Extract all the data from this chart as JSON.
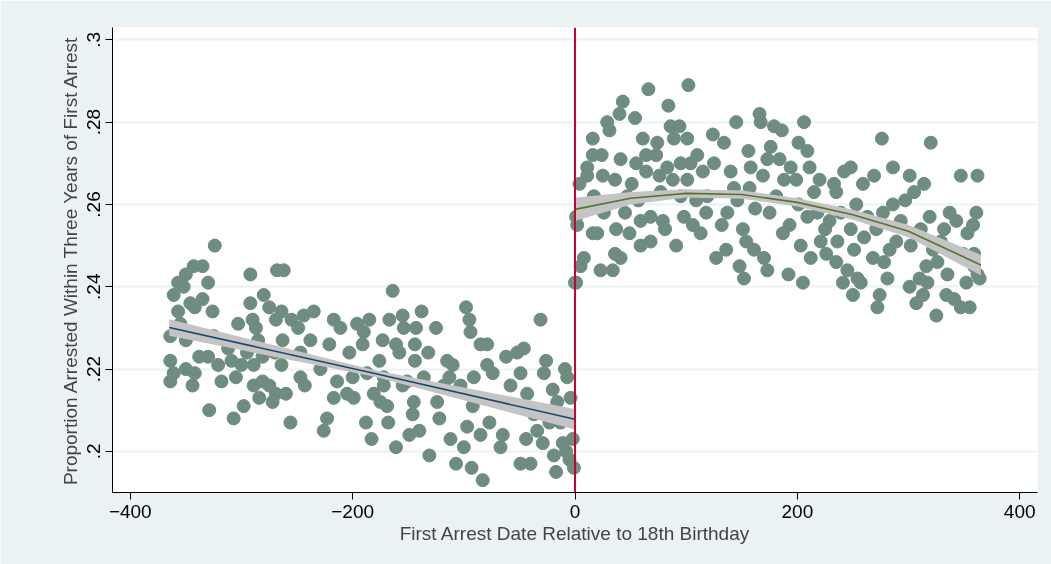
{
  "chart_data": {
    "type": "scatter",
    "xlabel": "First Arrest Date Relative to 18th Birthday",
    "ylabel": "Proportion Arrested Within Three Years of First Arrest",
    "xlim": [
      -416,
      416
    ],
    "ylim": [
      0.19,
      0.303
    ],
    "xticks": [
      -400,
      -200,
      0,
      200,
      400
    ],
    "yticks": [
      {
        "value": 0.2,
        "label": ".2"
      },
      {
        "value": 0.22,
        "label": ".22"
      },
      {
        "value": 0.24,
        "label": ".24"
      },
      {
        "value": 0.26,
        "label": ".26"
      },
      {
        "value": 0.28,
        "label": ".28"
      },
      {
        "value": 0.3,
        "label": ".3"
      }
    ],
    "grid": "y",
    "ref_lines": [
      {
        "axis": "x",
        "value": 0,
        "color": "#c10534"
      }
    ],
    "series": [
      {
        "marker": "circle",
        "color": "#6e8c80",
        "x": [
          -364,
          -364,
          -361,
          -364,
          -361,
          -357,
          -352,
          -357,
          -355,
          -350,
          -343,
          -335,
          -324,
          -330,
          -335,
          -346,
          -342,
          -350,
          -350,
          -342,
          -344,
          -338,
          -330,
          -326,
          -325,
          -312,
          -321,
          -318,
          -329,
          -307,
          -298,
          -305,
          -309,
          -300,
          -303,
          -295,
          -292,
          -292,
          -290,
          -280,
          -275,
          -287,
          -285,
          -289,
          -281,
          -289,
          -281,
          -284,
          -275,
          -272,
          -269,
          -268,
          -262,
          -264,
          -269,
          -270,
          -263,
          -264,
          -260,
          -256,
          -255,
          -249,
          -244,
          -247,
          -243,
          -247,
          -235,
          -238,
          -229,
          -221,
          -217,
          -223,
          -226,
          -217,
          -211,
          -214,
          -205,
          -203,
          -199,
          -200,
          -196,
          -190,
          -191,
          -187,
          -185,
          -188,
          -183,
          -181,
          -176,
          -172,
          -173,
          -172,
          -175,
          -169,
          -168,
          -164,
          -167,
          -161,
          -158,
          -155,
          -154,
          -161,
          -155,
          -151,
          -145,
          -146,
          -149,
          -143,
          -144,
          -144,
          -140,
          -138,
          -136,
          -132,
          -131,
          -125,
          -124,
          -122,
          -118,
          -115,
          -113,
          -112,
          -110,
          -107,
          -103,
          -100,
          -98,
          -97,
          -95,
          -94,
          -93,
          -91,
          -92,
          -85,
          -79,
          -85,
          -83,
          -79,
          -74,
          -77,
          -67,
          -65,
          -62,
          -58,
          -52,
          -46,
          -49,
          -40,
          -49,
          -43,
          -44,
          -37,
          -31,
          -26,
          -28,
          -34,
          -29,
          -23,
          -20,
          -19,
          -17,
          -16,
          -13,
          -9,
          -7,
          -11,
          -8,
          -4,
          -5,
          -2,
          -1
        ],
        "values": [
          0.228,
          0.222,
          0.219,
          0.217,
          0.238,
          0.241,
          0.24,
          0.234,
          0.231,
          0.243,
          0.245,
          0.245,
          0.25,
          0.241,
          0.237,
          0.236,
          0.235,
          0.227,
          0.22,
          0.219,
          0.216,
          0.223,
          0.223,
          0.234,
          0.228,
          0.225,
          0.221,
          0.217,
          0.21,
          0.208,
          0.211,
          0.218,
          0.222,
          0.221,
          0.231,
          0.224,
          0.236,
          0.243,
          0.232,
          0.238,
          0.235,
          0.23,
          0.227,
          0.221,
          0.223,
          0.216,
          0.217,
          0.213,
          0.216,
          0.212,
          0.214,
          0.244,
          0.244,
          0.234,
          0.232,
          0.224,
          0.227,
          0.221,
          0.214,
          0.207,
          0.232,
          0.23,
          0.233,
          0.218,
          0.216,
          0.224,
          0.234,
          0.227,
          0.22,
          0.226,
          0.213,
          0.208,
          0.205,
          0.232,
          0.23,
          0.217,
          0.214,
          0.224,
          0.213,
          0.218,
          0.231,
          0.229,
          0.226,
          0.219,
          0.232,
          0.207,
          0.203,
          0.214,
          0.222,
          0.218,
          0.227,
          0.216,
          0.212,
          0.211,
          0.207,
          0.239,
          0.232,
          0.226,
          0.224,
          0.233,
          0.23,
          0.201,
          0.216,
          0.217,
          0.212,
          0.209,
          0.204,
          0.23,
          0.226,
          0.222,
          0.205,
          0.234,
          0.218,
          0.224,
          0.199,
          0.23,
          0.212,
          0.208,
          0.216,
          0.222,
          0.218,
          0.203,
          0.221,
          0.197,
          0.216,
          0.201,
          0.235,
          0.206,
          0.232,
          0.229,
          0.196,
          0.218,
          0.211,
          0.226,
          0.226,
          0.204,
          0.193,
          0.221,
          0.219,
          0.207,
          0.201,
          0.204,
          0.223,
          0.216,
          0.224,
          0.225,
          0.197,
          0.197,
          0.219,
          0.214,
          0.203,
          0.209,
          0.232,
          0.222,
          0.219,
          0.205,
          0.202,
          0.207,
          0.215,
          0.199,
          0.195,
          0.212,
          0.207,
          0.22,
          0.218,
          0.202,
          0.2,
          0.213,
          0.198,
          0.203,
          0.196
        ]
      },
      {
        "marker": "circle",
        "color": "#6e8c80",
        "x": [
          0,
          1,
          1,
          4,
          2,
          5,
          8,
          11,
          11,
          16,
          16,
          17,
          16,
          20,
          23,
          24,
          25,
          26,
          29,
          31,
          34,
          36,
          37,
          40,
          43,
          41,
          41,
          36,
          45,
          47,
          49,
          51,
          54,
          55,
          57,
          59,
          59,
          61,
          66,
          64,
          64,
          68,
          68,
          73,
          74,
          76,
          77,
          79,
          81,
          83,
          84,
          86,
          89,
          88,
          91,
          94,
          95,
          95,
          98,
          101,
          102,
          101,
          104,
          106,
          109,
          110,
          113,
          115,
          119,
          118,
          124,
          125,
          127,
          132,
          134,
          136,
          137,
          140,
          143,
          145,
          146,
          148,
          151,
          152,
          154,
          156,
          157,
          158,
          161,
          162,
          166,
          167,
          169,
          170,
          173,
          173,
          175,
          176,
          179,
          181,
          184,
          186,
          187,
          188,
          193,
          192,
          194,
          199,
          201,
          201,
          203,
          205,
          206,
          209,
          209,
          211,
          212,
          215,
          218,
          220,
          221,
          225,
          226,
          229,
          233,
          235,
          235,
          236,
          239,
          241,
          242,
          245,
          248,
          250,
          248,
          251,
          253,
          254,
          257,
          259,
          260,
          263,
          268,
          269,
          271,
          272,
          274,
          276,
          277,
          278,
          281,
          283,
          286,
          286,
          289,
          293,
          297,
          301,
          301,
          302,
          305,
          307,
          310,
          311,
          313,
          314,
          316,
          317,
          319,
          320,
          322,
          325,
          326,
          329,
          332,
          334,
          335,
          337,
          341,
          343,
          347,
          347,
          349,
          352,
          353,
          355,
          358,
          359,
          359,
          361,
          362,
          362,
          364
        ],
        "values": [
          0.241,
          0.241,
          0.257,
          0.265,
          0.255,
          0.245,
          0.247,
          0.269,
          0.267,
          0.276,
          0.272,
          0.262,
          0.253,
          0.253,
          0.244,
          0.272,
          0.267,
          0.258,
          0.28,
          0.278,
          0.244,
          0.266,
          0.254,
          0.282,
          0.285,
          0.271,
          0.247,
          0.248,
          0.258,
          0.262,
          0.253,
          0.265,
          0.281,
          0.27,
          0.261,
          0.256,
          0.25,
          0.276,
          0.288,
          0.272,
          0.268,
          0.257,
          0.251,
          0.272,
          0.275,
          0.267,
          0.263,
          0.256,
          0.254,
          0.269,
          0.284,
          0.279,
          0.276,
          0.266,
          0.25,
          0.279,
          0.27,
          0.262,
          0.257,
          0.276,
          0.289,
          0.266,
          0.27,
          0.255,
          0.261,
          0.272,
          0.253,
          0.268,
          0.262,
          0.258,
          0.277,
          0.27,
          0.247,
          0.255,
          0.275,
          0.249,
          0.258,
          0.268,
          0.264,
          0.28,
          0.261,
          0.245,
          0.254,
          0.242,
          0.251,
          0.273,
          0.264,
          0.269,
          0.249,
          0.259,
          0.282,
          0.28,
          0.267,
          0.247,
          0.244,
          0.271,
          0.258,
          0.274,
          0.279,
          0.262,
          0.271,
          0.278,
          0.253,
          0.266,
          0.255,
          0.243,
          0.269,
          0.266,
          0.26,
          0.275,
          0.25,
          0.241,
          0.28,
          0.273,
          0.257,
          0.269,
          0.247,
          0.263,
          0.258,
          0.266,
          0.251,
          0.254,
          0.248,
          0.256,
          0.265,
          0.263,
          0.246,
          0.251,
          0.258,
          0.241,
          0.268,
          0.244,
          0.269,
          0.238,
          0.254,
          0.249,
          0.26,
          0.242,
          0.241,
          0.265,
          0.252,
          0.257,
          0.247,
          0.267,
          0.254,
          0.235,
          0.238,
          0.276,
          0.258,
          0.246,
          0.242,
          0.249,
          0.269,
          0.26,
          0.251,
          0.256,
          0.261,
          0.267,
          0.24,
          0.25,
          0.263,
          0.236,
          0.242,
          0.254,
          0.238,
          0.265,
          0.245,
          0.241,
          0.257,
          0.275,
          0.249,
          0.233,
          0.246,
          0.251,
          0.254,
          0.238,
          0.243,
          0.258,
          0.237,
          0.256,
          0.267,
          0.235,
          0.248,
          0.241,
          0.253,
          0.235,
          0.255,
          0.248,
          0.245,
          0.258,
          0.267,
          0.243,
          0.242
        ]
      },
      {
        "type": "line",
        "color": "#1a476f",
        "x": [
          -365,
          -180,
          0
        ],
        "values": [
          0.2301,
          0.2189,
          0.2078
        ],
        "lower": [
          0.2281,
          0.2181,
          0.2053
        ],
        "upper": [
          0.2321,
          0.2197,
          0.2103
        ]
      },
      {
        "type": "line",
        "color": "#55752f",
        "x": [
          0,
          50,
          100,
          150,
          200,
          250,
          300,
          365
        ],
        "values": [
          0.2588,
          0.2615,
          0.2627,
          0.2624,
          0.2605,
          0.2575,
          0.2535,
          0.2453
        ],
        "lower": [
          0.256,
          0.26,
          0.2617,
          0.2614,
          0.2595,
          0.2563,
          0.252,
          0.2428
        ],
        "upper": [
          0.2616,
          0.263,
          0.2637,
          0.2634,
          0.2615,
          0.2587,
          0.255,
          0.2478
        ]
      }
    ]
  }
}
